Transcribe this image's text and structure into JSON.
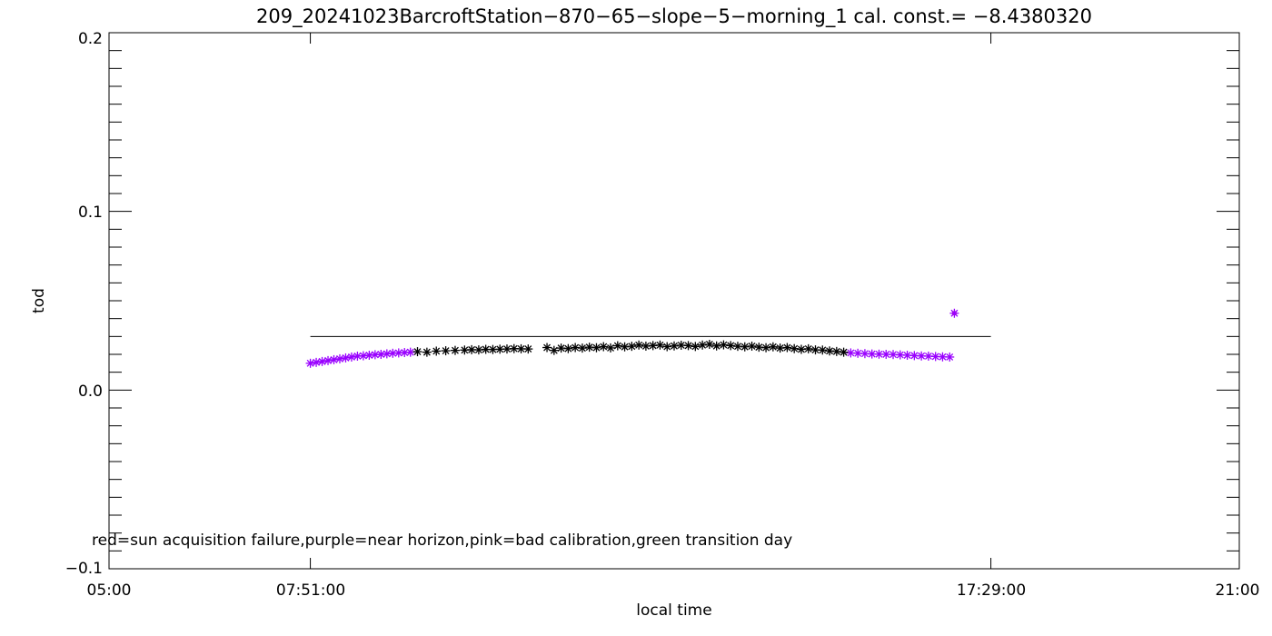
{
  "chart_data": {
    "type": "scatter",
    "title": "209_20241023BarcroftStation−870−65−slope−5−morning_1 cal. const.= −8.4380320",
    "xlabel": "local time",
    "ylabel": "tod",
    "xlim": [
      "05:00",
      "21:00"
    ],
    "ylim": [
      -0.1,
      0.2
    ],
    "x_tick_labels": [
      "05:00",
      "07:51:00",
      "17:29:00",
      "21:00"
    ],
    "y_tick_labels": [
      "−0.1",
      "0.0",
      "0.1",
      "0.2"
    ],
    "y_ticks": [
      -0.1,
      0.0,
      0.1,
      0.2
    ],
    "note": "red=sun acquisition failure,purple=near horizon,pink=bad calibration,green transition day",
    "reference_line": {
      "y": 0.03,
      "x_start": "07:51",
      "x_end": "17:29",
      "color": "#000000"
    },
    "colors": {
      "normal": "#000000",
      "near_horizon": "#9900ff",
      "outlier_fill": "#cc0066"
    },
    "series": [
      {
        "color": "#9900ff",
        "points": [
          [
            "07:51",
            0.015
          ],
          [
            "07:56",
            0.0155
          ],
          [
            "08:01",
            0.016
          ],
          [
            "08:06",
            0.0165
          ],
          [
            "08:11",
            0.017
          ],
          [
            "08:16",
            0.0175
          ],
          [
            "08:21",
            0.018
          ],
          [
            "08:26",
            0.0185
          ],
          [
            "08:31",
            0.019
          ],
          [
            "08:36",
            0.0192
          ],
          [
            "08:41",
            0.0195
          ],
          [
            "08:46",
            0.0198
          ],
          [
            "08:51",
            0.02
          ],
          [
            "08:56",
            0.0203
          ],
          [
            "09:01",
            0.0206
          ],
          [
            "09:06",
            0.0208
          ],
          [
            "09:11",
            0.021
          ],
          [
            "09:16",
            0.0212
          ],
          [
            "15:30",
            0.0208
          ],
          [
            "15:36",
            0.0206
          ],
          [
            "15:42",
            0.0204
          ],
          [
            "15:48",
            0.0202
          ],
          [
            "15:54",
            0.0201
          ],
          [
            "16:00",
            0.02
          ],
          [
            "16:06",
            0.0199
          ],
          [
            "16:12",
            0.0197
          ],
          [
            "16:18",
            0.0195
          ],
          [
            "16:24",
            0.0193
          ],
          [
            "16:30",
            0.0191
          ],
          [
            "16:36",
            0.019
          ],
          [
            "16:42",
            0.0188
          ],
          [
            "16:48",
            0.0186
          ],
          [
            "16:54",
            0.0185
          ]
        ]
      },
      {
        "color": "#000000",
        "points": [
          [
            "09:22",
            0.0215
          ],
          [
            "09:30",
            0.0212
          ],
          [
            "09:38",
            0.0218
          ],
          [
            "09:46",
            0.022
          ],
          [
            "09:54",
            0.0222
          ],
          [
            "10:02",
            0.0224
          ],
          [
            "10:08",
            0.0226
          ],
          [
            "10:14",
            0.0225
          ],
          [
            "10:20",
            0.0228
          ],
          [
            "10:26",
            0.0227
          ],
          [
            "10:32",
            0.0229
          ],
          [
            "10:38",
            0.023
          ],
          [
            "10:44",
            0.0232
          ],
          [
            "10:50",
            0.0231
          ],
          [
            "10:56",
            0.023
          ],
          [
            "11:12",
            0.0238
          ],
          [
            "11:18",
            0.0222
          ],
          [
            "11:24",
            0.0235
          ],
          [
            "11:30",
            0.0232
          ],
          [
            "11:36",
            0.0238
          ],
          [
            "11:42",
            0.0235
          ],
          [
            "11:48",
            0.024
          ],
          [
            "11:54",
            0.0237
          ],
          [
            "12:00",
            0.0243
          ],
          [
            "12:06",
            0.0236
          ],
          [
            "12:12",
            0.0248
          ],
          [
            "12:18",
            0.0242
          ],
          [
            "12:24",
            0.0245
          ],
          [
            "12:30",
            0.0252
          ],
          [
            "12:36",
            0.0246
          ],
          [
            "12:42",
            0.0249
          ],
          [
            "12:48",
            0.0252
          ],
          [
            "12:54",
            0.0243
          ],
          [
            "13:00",
            0.0247
          ],
          [
            "13:06",
            0.0251
          ],
          [
            "13:12",
            0.0249
          ],
          [
            "13:18",
            0.0244
          ],
          [
            "13:24",
            0.0252
          ],
          [
            "13:30",
            0.0256
          ],
          [
            "13:36",
            0.0247
          ],
          [
            "13:42",
            0.0253
          ],
          [
            "13:48",
            0.0249
          ],
          [
            "13:54",
            0.0245
          ],
          [
            "14:00",
            0.0242
          ],
          [
            "14:06",
            0.0246
          ],
          [
            "14:12",
            0.024
          ],
          [
            "14:18",
            0.0237
          ],
          [
            "14:24",
            0.0242
          ],
          [
            "14:30",
            0.0235
          ],
          [
            "14:36",
            0.0238
          ],
          [
            "14:42",
            0.0232
          ],
          [
            "14:48",
            0.0228
          ],
          [
            "14:54",
            0.0231
          ],
          [
            "15:00",
            0.0225
          ],
          [
            "15:06",
            0.0224
          ],
          [
            "15:12",
            0.0219
          ],
          [
            "15:18",
            0.0216
          ],
          [
            "15:24",
            0.0212
          ]
        ]
      },
      {
        "color": "#9900ff",
        "points": [
          [
            "16:58",
            0.043
          ]
        ]
      }
    ]
  }
}
